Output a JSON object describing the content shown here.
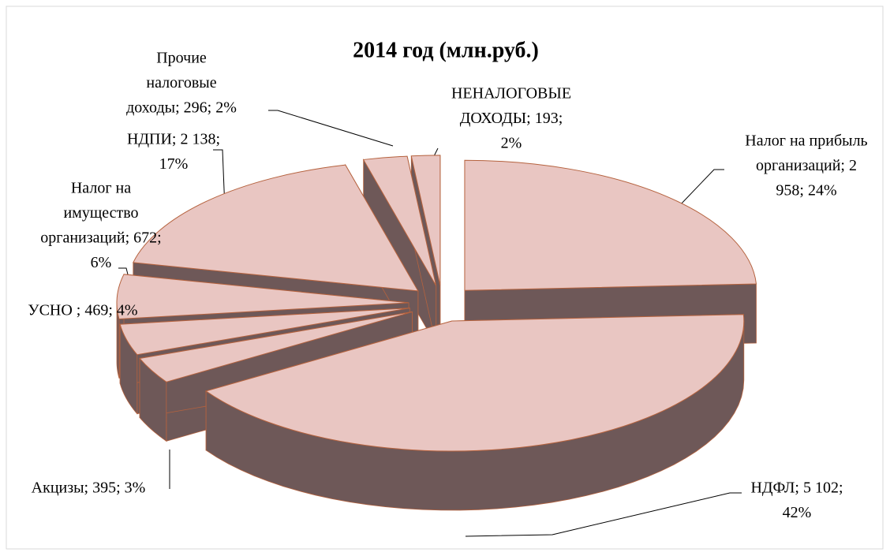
{
  "chart_data": {
    "type": "pie3d",
    "title": "2014 год (млн.руб.)",
    "values": [
      2958,
      5102,
      395,
      469,
      672,
      2138,
      296,
      193
    ],
    "labels": [
      [
        "Налог на прибыль",
        "организаций; 2",
        "958; 24%"
      ],
      [
        "НДФЛ; 5 102;",
        "42%"
      ],
      [
        "Акцизы; 395; 3%"
      ],
      [
        "УСНО ; 469; 4%"
      ],
      [
        "Налог на",
        "имущество",
        "организаций; 672;",
        "6%"
      ],
      [
        "НДПИ; 2 138;",
        "17%"
      ],
      [
        "Прочие",
        "налоговые",
        "доходы; 296; 2%"
      ],
      [
        "НЕНАЛОГОВЫЕ",
        "ДОХОДЫ; 193;",
        "2%"
      ]
    ],
    "color": "#e9c6c2",
    "side_color": "#6e5858",
    "edge_color": "#b5623e"
  }
}
